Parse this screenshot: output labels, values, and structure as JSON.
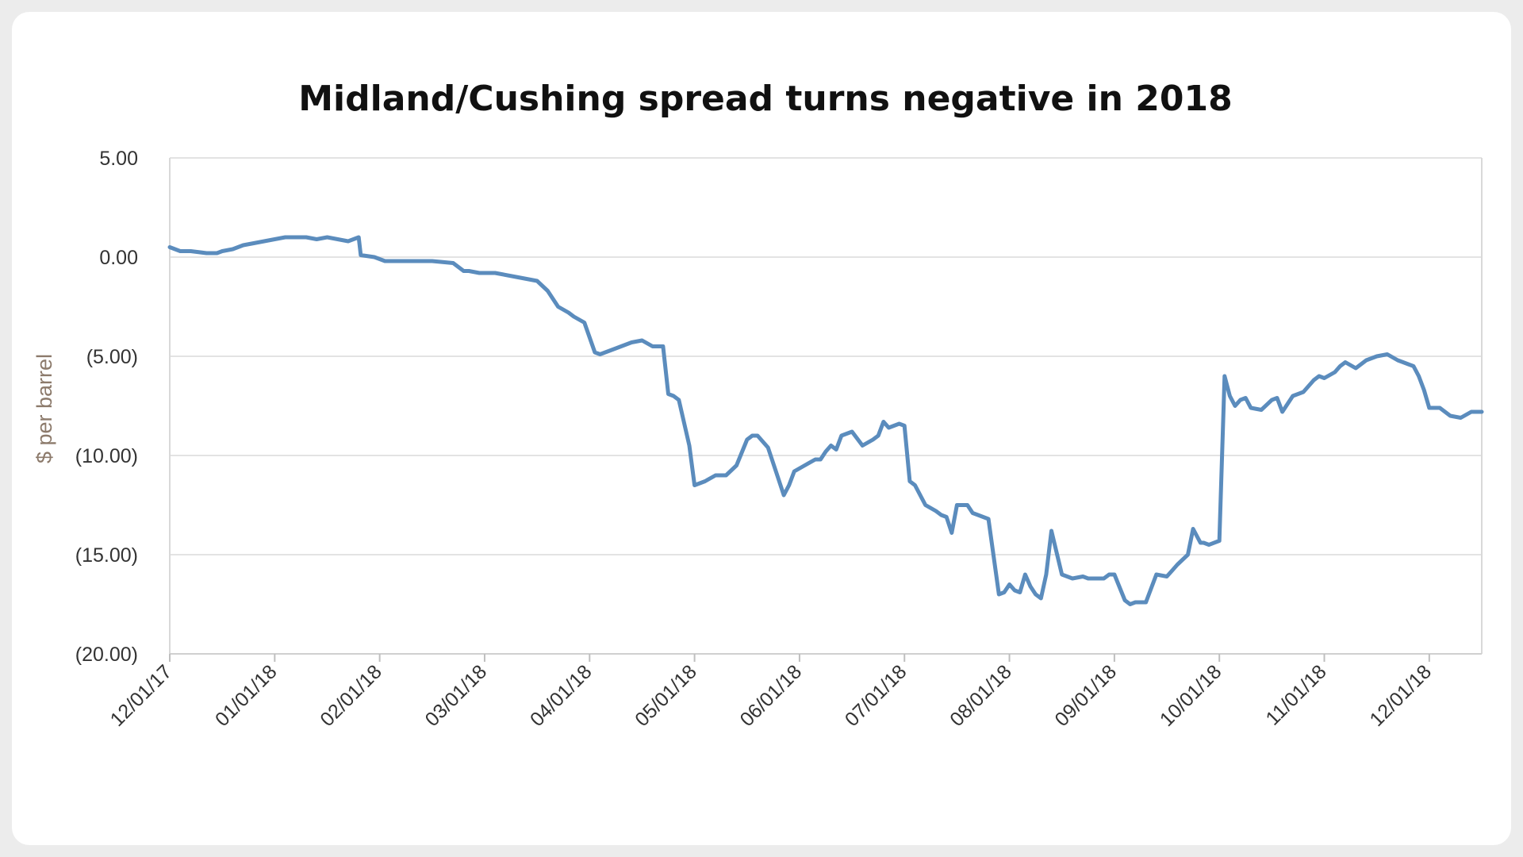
{
  "chart_data": {
    "type": "line",
    "title": "Midland/Cushing spread turns negative in 2018",
    "xlabel": "",
    "ylabel": "$ per barrel",
    "ylim": [
      -20,
      5
    ],
    "yticks": [
      5,
      0,
      -5,
      -10,
      -15,
      -20
    ],
    "ytick_labels": [
      "5.00",
      "0.00",
      "(5.00)",
      "(10.00)",
      "(15.00)",
      "(20.00)"
    ],
    "xlim": [
      0,
      12.5
    ],
    "xtick_positions": [
      0,
      1,
      2,
      3,
      4,
      5,
      6,
      7,
      8,
      9,
      10,
      11,
      12
    ],
    "xtick_labels": [
      "12/01/17",
      "01/01/18",
      "02/01/18",
      "03/01/18",
      "04/01/18",
      "05/01/18",
      "06/01/18",
      "07/01/18",
      "08/01/18",
      "09/01/18",
      "10/01/18",
      "11/01/18",
      "12/01/18"
    ],
    "grid": true,
    "line_color": "#5b8cbd",
    "series": [
      {
        "name": "Midland/Cushing spread",
        "x": [
          0,
          0.1,
          0.2,
          0.35,
          0.45,
          0.5,
          0.6,
          0.7,
          0.8,
          0.9,
          1.0,
          1.1,
          1.2,
          1.3,
          1.4,
          1.5,
          1.6,
          1.7,
          1.8,
          1.82,
          1.95,
          2.05,
          2.15,
          2.3,
          2.5,
          2.7,
          2.8,
          2.85,
          2.95,
          3.1,
          3.3,
          3.5,
          3.6,
          3.7,
          3.8,
          3.85,
          3.95,
          4.05,
          4.1,
          4.15,
          4.25,
          4.3,
          4.4,
          4.5,
          4.6,
          4.7,
          4.75,
          4.8,
          4.85,
          4.95,
          5.0,
          5.05,
          5.1,
          5.2,
          5.3,
          5.4,
          5.5,
          5.55,
          5.6,
          5.7,
          5.8,
          5.85,
          5.9,
          5.95,
          6.05,
          6.15,
          6.2,
          6.25,
          6.3,
          6.35,
          6.4,
          6.5,
          6.6,
          6.7,
          6.75,
          6.8,
          6.85,
          6.95,
          7.0,
          7.05,
          7.1,
          7.2,
          7.3,
          7.35,
          7.4,
          7.45,
          7.5,
          7.6,
          7.65,
          7.7,
          7.75,
          7.8,
          7.9,
          7.95,
          8.0,
          8.05,
          8.1,
          8.15,
          8.2,
          8.25,
          8.3,
          8.35,
          8.4,
          8.5,
          8.6,
          8.7,
          8.75,
          8.8,
          8.9,
          8.95,
          9.0,
          9.1,
          9.15,
          9.2,
          9.3,
          9.4,
          9.5,
          9.55,
          9.6,
          9.7,
          9.75,
          9.8,
          9.82,
          9.85,
          9.9,
          10.0,
          10.05,
          10.1,
          10.15,
          10.2,
          10.25,
          10.3,
          10.4,
          10.5,
          10.55,
          10.6,
          10.7,
          10.8,
          10.9,
          10.95,
          11.0,
          11.1,
          11.15,
          11.2,
          11.3,
          11.4,
          11.5,
          11.6,
          11.7,
          11.75,
          11.8,
          11.85,
          11.9,
          11.95,
          12.0,
          12.1,
          12.2,
          12.3,
          12.4,
          12.5
        ],
        "values": [
          0.5,
          0.3,
          0.3,
          0.2,
          0.2,
          0.3,
          0.4,
          0.6,
          0.7,
          0.8,
          0.9,
          1.0,
          1.0,
          1.0,
          0.9,
          1.0,
          0.9,
          0.8,
          1.0,
          0.1,
          0.0,
          -0.2,
          -0.2,
          -0.2,
          -0.2,
          -0.3,
          -0.7,
          -0.7,
          -0.8,
          -0.8,
          -1.0,
          -1.2,
          -1.7,
          -2.5,
          -2.8,
          -3.0,
          -3.3,
          -4.8,
          -4.9,
          -4.8,
          -4.6,
          -4.5,
          -4.3,
          -4.2,
          -4.5,
          -4.5,
          -6.9,
          -7.0,
          -7.2,
          -9.5,
          -11.5,
          -11.4,
          -11.3,
          -11.0,
          -11.0,
          -10.5,
          -9.2,
          -9.0,
          -9.0,
          -9.6,
          -11.2,
          -12.0,
          -11.5,
          -10.8,
          -10.5,
          -10.2,
          -10.2,
          -9.8,
          -9.5,
          -9.7,
          -9.0,
          -8.8,
          -9.5,
          -9.2,
          -9.0,
          -8.3,
          -8.6,
          -8.4,
          -8.5,
          -11.3,
          -11.5,
          -12.5,
          -12.8,
          -13.0,
          -13.1,
          -13.9,
          -12.5,
          -12.5,
          -12.9,
          -13.0,
          -13.1,
          -13.2,
          -17.0,
          -16.9,
          -16.5,
          -16.8,
          -16.9,
          -16.0,
          -16.6,
          -17.0,
          -17.2,
          -16.0,
          -13.8,
          -16.0,
          -16.2,
          -16.1,
          -16.2,
          -16.2,
          -16.2,
          -16.0,
          -16.0,
          -17.3,
          -17.5,
          -17.4,
          -17.4,
          -16.0,
          -16.1,
          -15.8,
          -15.5,
          -15.0,
          -13.7,
          -14.2,
          -14.4,
          -14.4,
          -14.5,
          -14.3,
          -6.0,
          -7.0,
          -7.5,
          -7.2,
          -7.1,
          -7.6,
          -7.7,
          -7.2,
          -7.1,
          -7.8,
          -7.0,
          -6.8,
          -6.2,
          -6.0,
          -6.1,
          -5.8,
          -5.5,
          -5.3,
          -5.6,
          -5.2,
          -5.0,
          -4.9,
          -5.2,
          -5.3,
          -5.4,
          -5.5,
          -6.0,
          -6.7,
          -7.6,
          -7.6,
          -8.0,
          -8.1,
          -7.8,
          -7.8
        ]
      }
    ]
  }
}
